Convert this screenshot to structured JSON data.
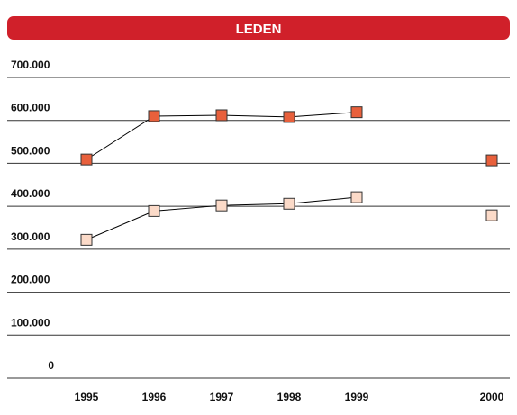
{
  "chart_data": {
    "type": "line",
    "title": "LEDEN",
    "categories": [
      "1995",
      "1996",
      "1997",
      "1998",
      "1999",
      null,
      "2000"
    ],
    "series": [
      {
        "color": "#e8603c",
        "values": [
          509000,
          610000,
          612000,
          608000,
          619000,
          null,
          507000
        ]
      },
      {
        "color": "#fbdac8",
        "values": [
          322000,
          389000,
          402000,
          406000,
          421000,
          null,
          379000
        ]
      }
    ],
    "ylim": [
      0,
      700000
    ],
    "yticks": [
      0,
      {
        "value": 100000,
        "label": "100.000"
      },
      {
        "value": 200000,
        "label": "200.000"
      },
      {
        "value": 300000,
        "label": "300.000"
      },
      {
        "value": 400000,
        "label": "400.000"
      },
      {
        "value": 500000,
        "label": "500.000"
      },
      {
        "value": 600000,
        "label": "600.000"
      },
      {
        "value": 700000,
        "label": "700.000"
      }
    ],
    "grid": true
  }
}
